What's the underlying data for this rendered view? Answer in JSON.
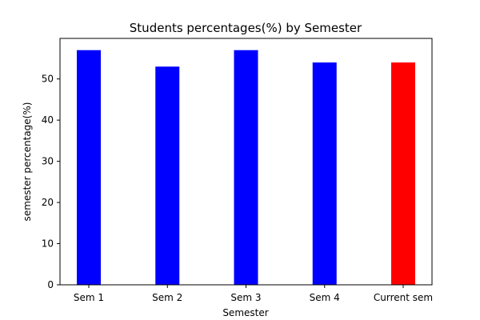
{
  "chart_data": {
    "type": "bar",
    "title": "Students percentages(%) by Semester",
    "xlabel": "Semester",
    "ylabel": "semester percentage(%)",
    "categories": [
      "Sem 1",
      "Sem 2",
      "Sem 3",
      "Sem 4",
      "Current sem"
    ],
    "values": [
      57,
      53,
      57,
      54,
      54
    ],
    "colors": [
      "#0000ff",
      "#0000ff",
      "#0000ff",
      "#0000ff",
      "#ff0000"
    ],
    "ylim": [
      0,
      59.85
    ],
    "yticks": [
      0,
      10,
      20,
      30,
      40,
      50
    ],
    "grid": false
  }
}
